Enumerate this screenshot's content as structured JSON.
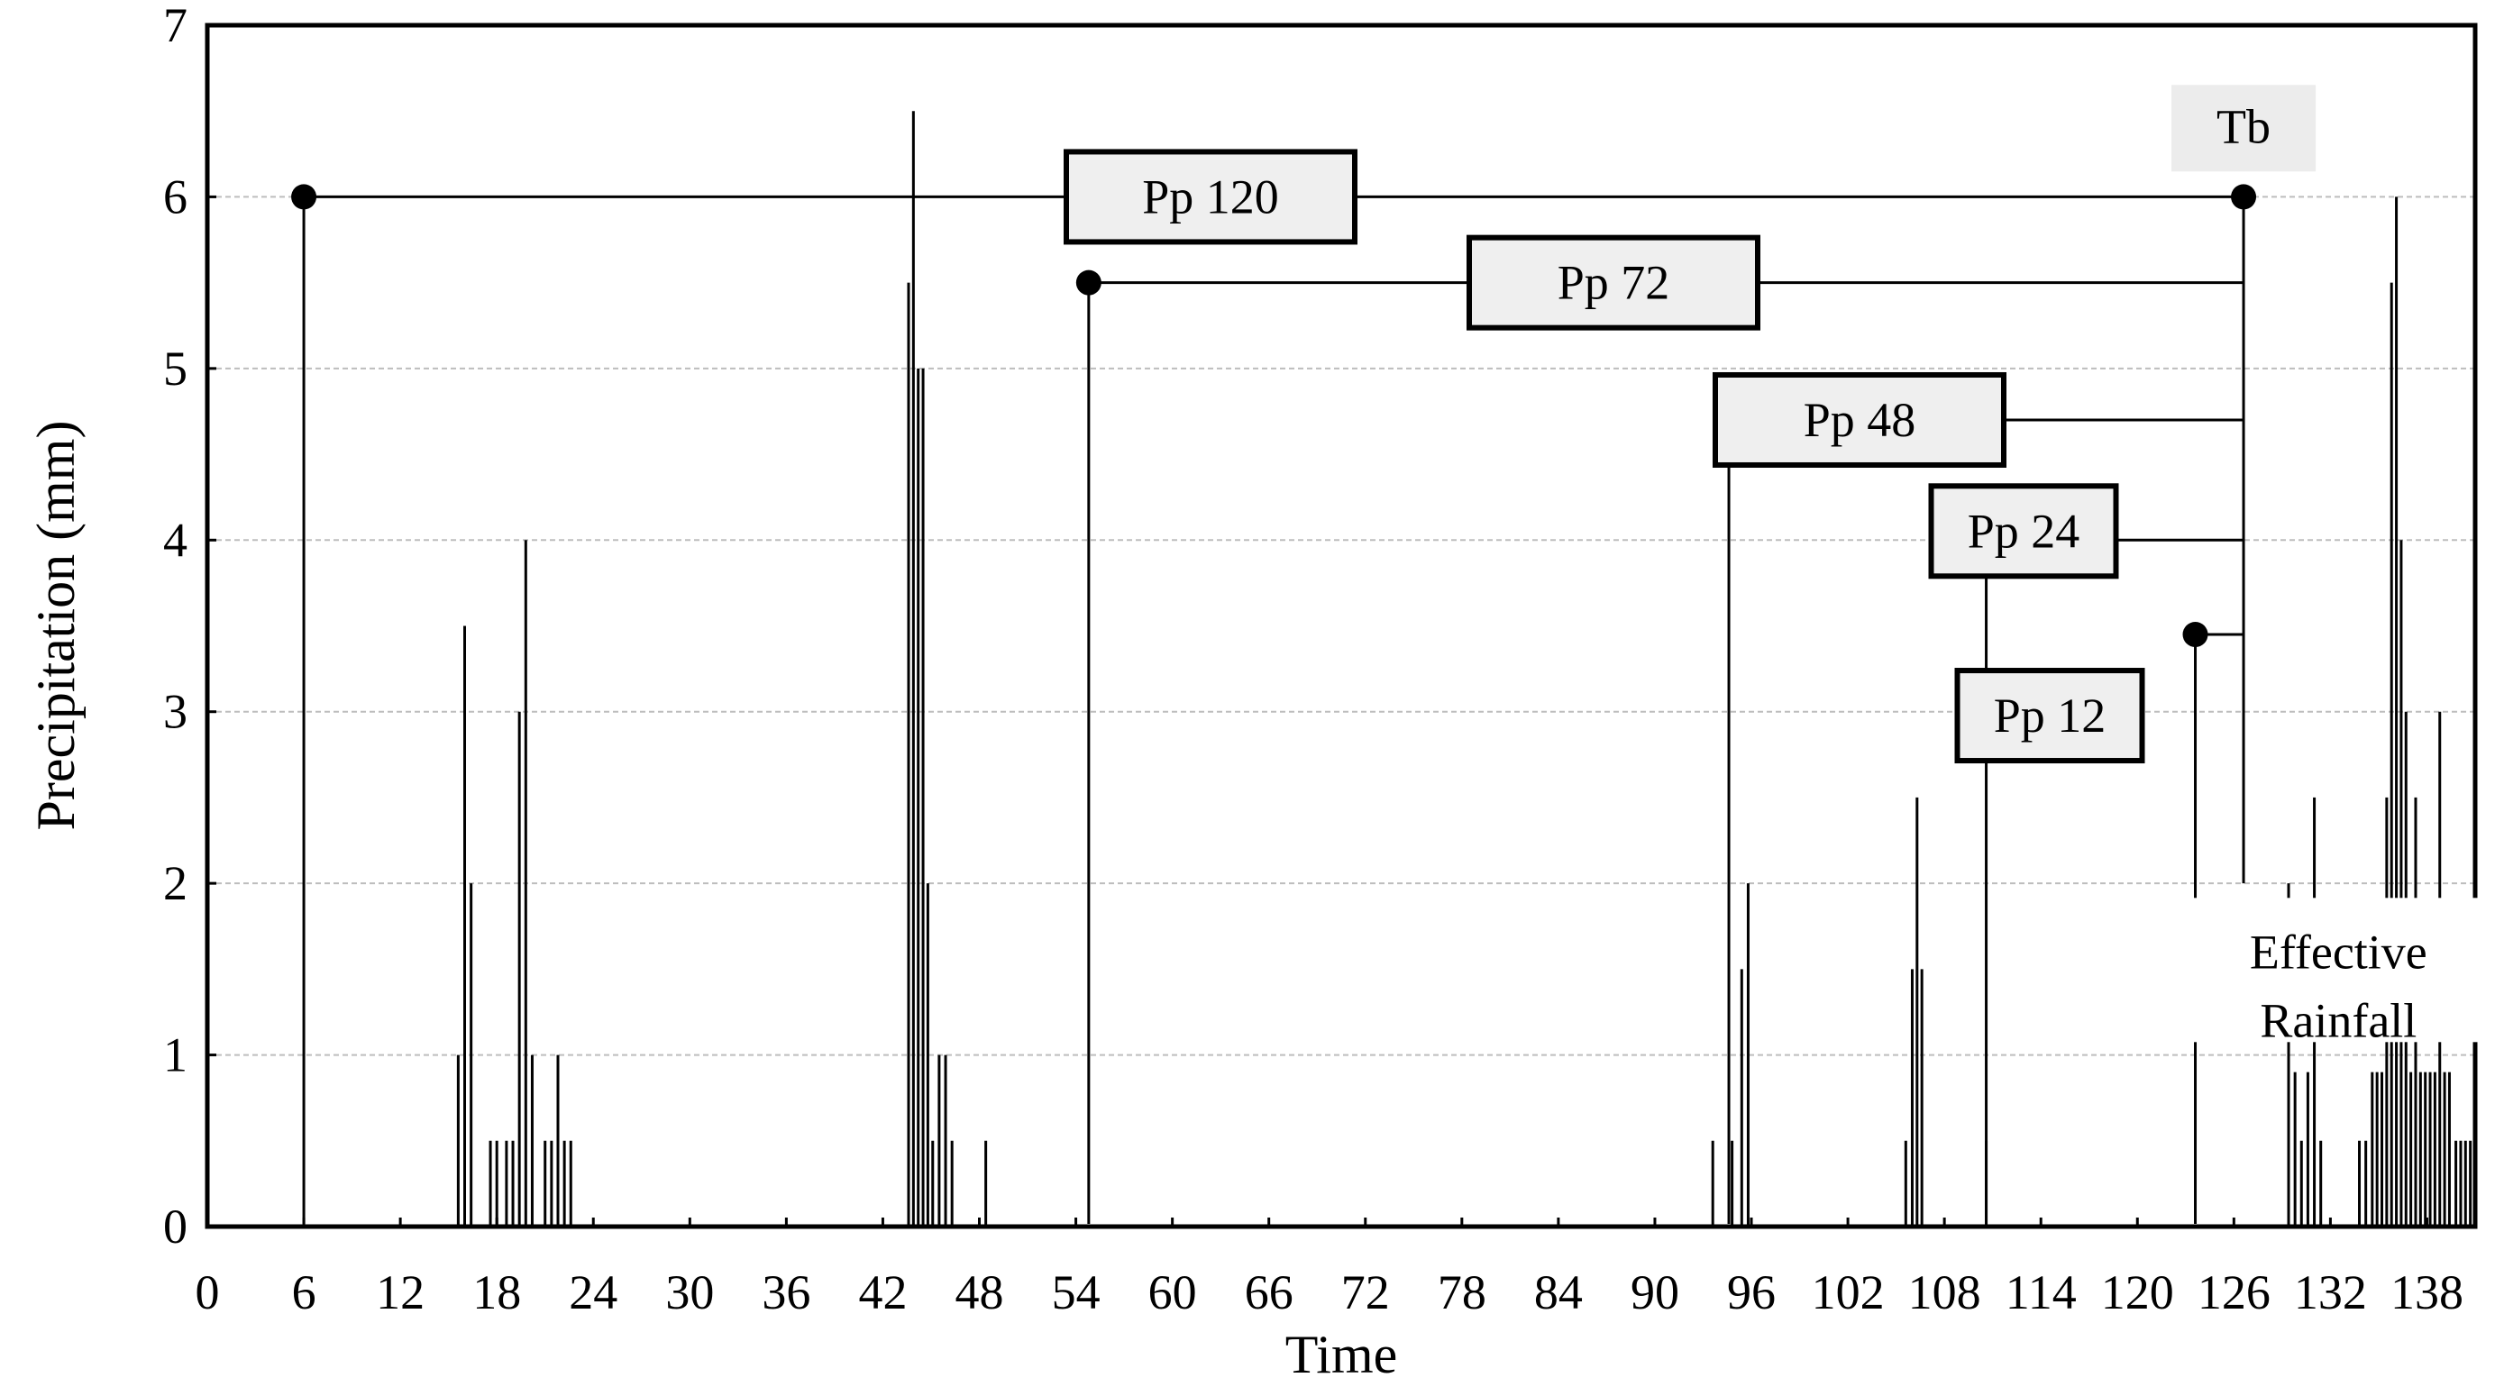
{
  "chart_data": {
    "type": "bar",
    "title": "",
    "xlabel": "Time",
    "ylabel": "Precipitation  (mm)",
    "xlim": [
      0,
      141
    ],
    "ylim": [
      0,
      7
    ],
    "x_ticks": [
      "0",
      "6",
      "12",
      "18",
      "24",
      "30",
      "36",
      "42",
      "48",
      "54",
      "60",
      "66",
      "72",
      "78",
      "84",
      "90",
      "96",
      "102",
      "108",
      "114",
      "120",
      "126",
      "132",
      "138"
    ],
    "y_ticks": [
      "0",
      "1",
      "2",
      "3",
      "4",
      "5",
      "6",
      "7"
    ],
    "grid": "horizontal-dashed",
    "bars": [
      {
        "x": 15.6,
        "value": 1.0
      },
      {
        "x": 16.0,
        "value": 3.5
      },
      {
        "x": 16.4,
        "value": 2.0
      },
      {
        "x": 17.6,
        "value": 0.5
      },
      {
        "x": 18.0,
        "value": 0.5
      },
      {
        "x": 18.6,
        "value": 0.5
      },
      {
        "x": 19.0,
        "value": 0.5
      },
      {
        "x": 19.4,
        "value": 3.0
      },
      {
        "x": 19.8,
        "value": 4.0
      },
      {
        "x": 20.2,
        "value": 1.0
      },
      {
        "x": 21.0,
        "value": 0.5
      },
      {
        "x": 21.4,
        "value": 0.5
      },
      {
        "x": 21.8,
        "value": 1.0
      },
      {
        "x": 22.2,
        "value": 0.5
      },
      {
        "x": 22.6,
        "value": 0.5
      },
      {
        "x": 43.6,
        "value": 5.5
      },
      {
        "x": 43.9,
        "value": 6.5
      },
      {
        "x": 44.2,
        "value": 5.0
      },
      {
        "x": 44.5,
        "value": 5.0
      },
      {
        "x": 44.8,
        "value": 2.0
      },
      {
        "x": 45.1,
        "value": 0.5
      },
      {
        "x": 45.5,
        "value": 1.0
      },
      {
        "x": 45.9,
        "value": 1.0
      },
      {
        "x": 46.3,
        "value": 0.5
      },
      {
        "x": 48.4,
        "value": 0.5
      },
      {
        "x": 93.6,
        "value": 0.5
      },
      {
        "x": 94.8,
        "value": 0.5
      },
      {
        "x": 95.4,
        "value": 1.5
      },
      {
        "x": 95.8,
        "value": 2.0
      },
      {
        "x": 105.6,
        "value": 0.5
      },
      {
        "x": 106.0,
        "value": 1.5
      },
      {
        "x": 106.3,
        "value": 2.5
      },
      {
        "x": 106.6,
        "value": 1.5
      },
      {
        "x": 110.6,
        "value": 0.5
      },
      {
        "x": 129.4,
        "value": 2.0
      },
      {
        "x": 129.8,
        "value": 0.9
      },
      {
        "x": 130.2,
        "value": 0.5
      },
      {
        "x": 130.6,
        "value": 0.9
      },
      {
        "x": 131.0,
        "value": 2.5
      },
      {
        "x": 131.4,
        "value": 0.5
      },
      {
        "x": 133.8,
        "value": 0.5
      },
      {
        "x": 134.2,
        "value": 0.5
      },
      {
        "x": 134.6,
        "value": 0.9
      },
      {
        "x": 134.9,
        "value": 0.9
      },
      {
        "x": 135.2,
        "value": 0.9
      },
      {
        "x": 135.5,
        "value": 2.5
      },
      {
        "x": 135.8,
        "value": 5.5
      },
      {
        "x": 136.1,
        "value": 6.0
      },
      {
        "x": 136.4,
        "value": 4.0
      },
      {
        "x": 136.7,
        "value": 3.0
      },
      {
        "x": 137.0,
        "value": 0.9
      },
      {
        "x": 137.3,
        "value": 2.5
      },
      {
        "x": 137.6,
        "value": 0.9
      },
      {
        "x": 137.9,
        "value": 0.9
      },
      {
        "x": 138.2,
        "value": 0.9
      },
      {
        "x": 138.5,
        "value": 0.9
      },
      {
        "x": 138.8,
        "value": 3.0
      },
      {
        "x": 139.1,
        "value": 0.9
      },
      {
        "x": 139.4,
        "value": 0.9
      },
      {
        "x": 139.8,
        "value": 0.5
      },
      {
        "x": 140.1,
        "value": 0.5
      },
      {
        "x": 140.4,
        "value": 0.5
      },
      {
        "x": 140.7,
        "value": 0.5
      },
      {
        "x": 141.0,
        "value": 0.5
      }
    ],
    "brackets": [
      {
        "label": "Pp 120",
        "start_x": 6.0,
        "end_x": 126.6,
        "level": 6.0
      },
      {
        "label": "Pp 72",
        "start_x": 54.8,
        "end_x": 126.6,
        "level": 5.5
      },
      {
        "label": "Pp 48",
        "start_x": 94.6,
        "end_x": 126.6,
        "level": 4.7
      },
      {
        "label": "Pp 24",
        "start_x": 110.6,
        "end_x": 126.6,
        "level": 4.0
      },
      {
        "label": "Pp 12",
        "start_x": 123.6,
        "end_x": 126.6,
        "level": 3.45
      }
    ],
    "annotations": [
      {
        "text": "Tb",
        "x": 126.6,
        "y": 6.4
      },
      {
        "text": "Effective",
        "x": 132.5,
        "y": 1.6
      },
      {
        "text": "Rainfall",
        "x": 132.5,
        "y": 1.2
      }
    ]
  }
}
